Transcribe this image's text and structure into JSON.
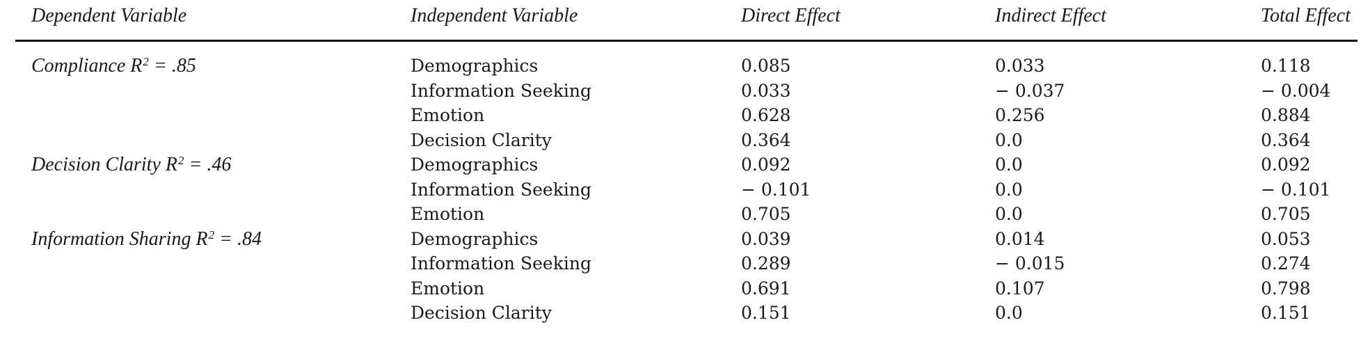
{
  "table": {
    "headers": [
      "Dependent Variable",
      "Independent Variable",
      "Direct Effect",
      "Indirect Effect",
      "Total Effect"
    ],
    "groups": [
      {
        "dv": {
          "prefix": "Compliance R",
          "sup": "2",
          "suffix": "= .85"
        },
        "rows": [
          {
            "iv": "Demographics",
            "direct": "0.085",
            "indirect": "0.033",
            "total": "0.118"
          },
          {
            "iv": "Information Seeking",
            "direct": "0.033",
            "indirect": "− 0.037",
            "total": "− 0.004"
          },
          {
            "iv": "Emotion",
            "direct": "0.628",
            "indirect": "0.256",
            "total": "0.884"
          },
          {
            "iv": "Decision Clarity",
            "direct": "0.364",
            "indirect": "0.0",
            "total": "0.364"
          }
        ]
      },
      {
        "dv": {
          "prefix": "Decision Clarity R",
          "sup": "2",
          "suffix": "= .46"
        },
        "rows": [
          {
            "iv": "Demographics",
            "direct": "0.092",
            "indirect": "0.0",
            "total": "0.092"
          },
          {
            "iv": "Information Seeking",
            "direct": "− 0.101",
            "indirect": "0.0",
            "total": "− 0.101"
          },
          {
            "iv": "Emotion",
            "direct": "0.705",
            "indirect": "0.0",
            "total": "0.705"
          }
        ]
      },
      {
        "dv": {
          "prefix": "Information Sharing R",
          "sup": "2",
          "suffix": "= .84"
        },
        "rows": [
          {
            "iv": "Demographics",
            "direct": "0.039",
            "indirect": "0.014",
            "total": "0.053"
          },
          {
            "iv": "Information Seeking",
            "direct": "0.289",
            "indirect": "− 0.015",
            "total": "0.274"
          },
          {
            "iv": "Emotion",
            "direct": "0.691",
            "indirect": "0.107",
            "total": "0.798"
          },
          {
            "iv": "Decision Clarity",
            "direct": "0.151",
            "indirect": "0.0",
            "total": "0.151"
          }
        ]
      }
    ],
    "colors": {
      "text": "#1a1a1a",
      "rule": "#0c0c0c",
      "background": "#ffffff"
    }
  }
}
